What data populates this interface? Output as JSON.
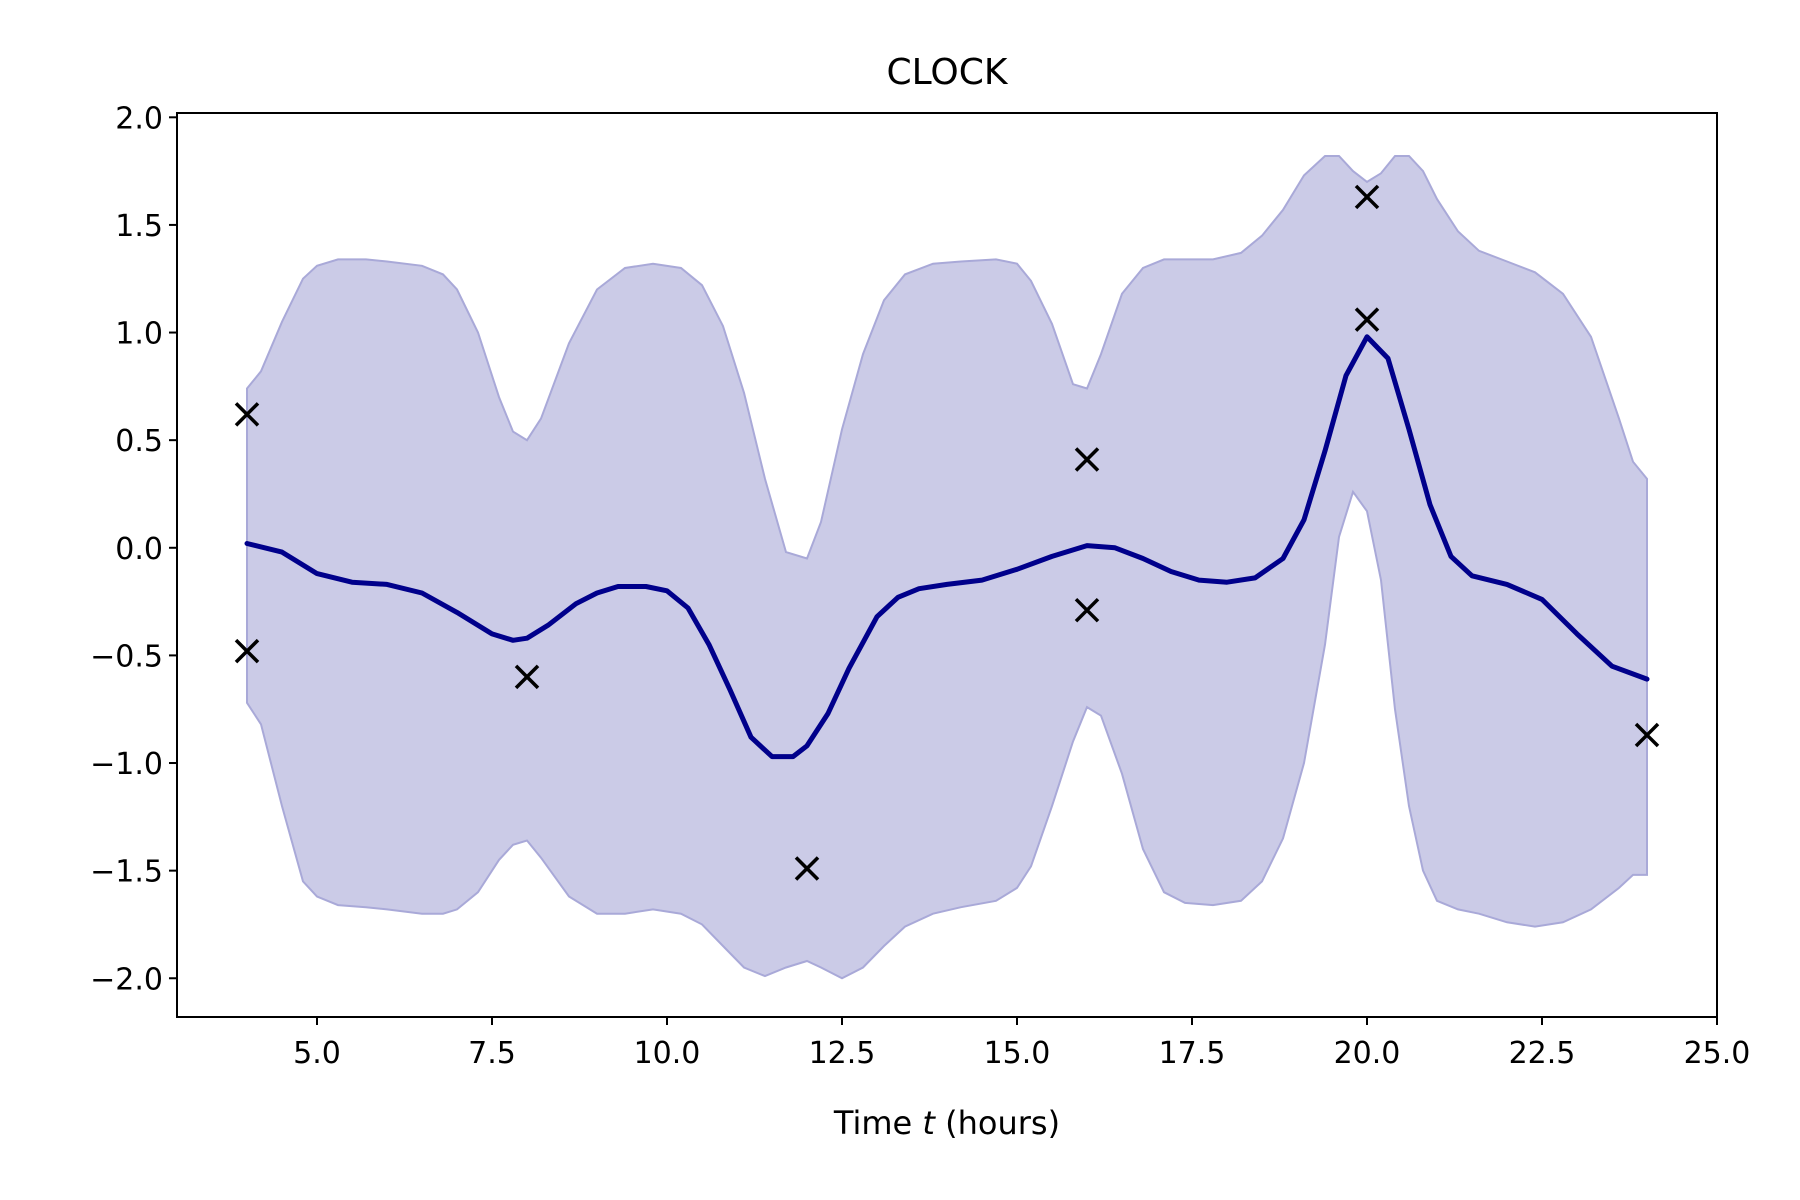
{
  "chart_data": {
    "type": "line",
    "title": "CLOCK",
    "xlabel": {
      "prefix": "Time ",
      "variable": "t",
      "suffix": " (hours)"
    },
    "ylabel": "",
    "xlim": [
      3.0,
      25.0
    ],
    "ylim": [
      -2.18,
      2.02
    ],
    "x_ticks": [
      5.0,
      7.5,
      10.0,
      12.5,
      15.0,
      17.5,
      20.0,
      22.5,
      25.0
    ],
    "x_tick_labels": [
      "5.0",
      "7.5",
      "10.0",
      "12.5",
      "15.0",
      "17.5",
      "20.0",
      "22.5",
      "25.0"
    ],
    "y_ticks": [
      2.0,
      1.5,
      1.0,
      0.5,
      0.0,
      -0.5,
      -1.0,
      -1.5,
      -2.0
    ],
    "y_tick_labels": [
      "2.0",
      "1.5",
      "1.0",
      "0.5",
      "0.0",
      "−0.5",
      "−1.0",
      "−1.5",
      "−2.0"
    ],
    "grid": false,
    "colors": {
      "mean": "#00008b",
      "band_fill": "#cbcbe7",
      "band_edge": "#a9a9d8",
      "markers": "#000000"
    },
    "mean_curve": {
      "x": [
        4.0,
        4.5,
        5.0,
        5.5,
        6.0,
        6.5,
        7.0,
        7.5,
        7.8,
        8.0,
        8.3,
        8.7,
        9.0,
        9.3,
        9.7,
        10.0,
        10.3,
        10.6,
        10.9,
        11.2,
        11.5,
        11.8,
        12.0,
        12.3,
        12.6,
        13.0,
        13.3,
        13.6,
        14.0,
        14.5,
        15.0,
        15.5,
        16.0,
        16.4,
        16.8,
        17.2,
        17.6,
        18.0,
        18.4,
        18.8,
        19.1,
        19.4,
        19.7,
        20.0,
        20.3,
        20.6,
        20.9,
        21.2,
        21.5,
        22.0,
        22.5,
        23.0,
        23.5,
        24.0
      ],
      "y": [
        0.02,
        -0.02,
        -0.12,
        -0.16,
        -0.17,
        -0.21,
        -0.3,
        -0.4,
        -0.43,
        -0.42,
        -0.36,
        -0.26,
        -0.21,
        -0.18,
        -0.18,
        -0.2,
        -0.28,
        -0.45,
        -0.66,
        -0.88,
        -0.97,
        -0.97,
        -0.92,
        -0.77,
        -0.56,
        -0.32,
        -0.23,
        -0.19,
        -0.17,
        -0.15,
        -0.1,
        -0.04,
        0.01,
        0.0,
        -0.05,
        -0.11,
        -0.15,
        -0.16,
        -0.14,
        -0.05,
        0.13,
        0.45,
        0.8,
        0.98,
        0.88,
        0.55,
        0.2,
        -0.04,
        -0.13,
        -0.17,
        -0.24,
        -0.4,
        -0.55,
        -0.61
      ]
    },
    "upper_bound": {
      "x": [
        4.0,
        4.2,
        4.5,
        4.8,
        5.0,
        5.3,
        5.7,
        6.0,
        6.5,
        6.8,
        7.0,
        7.3,
        7.6,
        7.8,
        8.0,
        8.2,
        8.6,
        9.0,
        9.4,
        9.8,
        10.2,
        10.5,
        10.8,
        11.1,
        11.4,
        11.7,
        12.0,
        12.2,
        12.5,
        12.8,
        13.1,
        13.4,
        13.8,
        14.2,
        14.7,
        15.0,
        15.2,
        15.5,
        15.8,
        16.0,
        16.2,
        16.5,
        16.8,
        17.1,
        17.4,
        17.8,
        18.2,
        18.5,
        18.8,
        19.1,
        19.4,
        19.6,
        19.8,
        20.0,
        20.2,
        20.4,
        20.6,
        20.8,
        21.0,
        21.3,
        21.6,
        22.0,
        22.4,
        22.8,
        23.2,
        23.6,
        23.8,
        24.0
      ],
      "y": [
        0.74,
        0.82,
        1.05,
        1.25,
        1.31,
        1.34,
        1.34,
        1.33,
        1.31,
        1.27,
        1.2,
        1.0,
        0.7,
        0.54,
        0.5,
        0.6,
        0.95,
        1.2,
        1.3,
        1.32,
        1.3,
        1.22,
        1.03,
        0.72,
        0.32,
        -0.02,
        -0.05,
        0.12,
        0.55,
        0.9,
        1.15,
        1.27,
        1.32,
        1.33,
        1.34,
        1.32,
        1.24,
        1.04,
        0.76,
        0.74,
        0.9,
        1.18,
        1.3,
        1.34,
        1.34,
        1.34,
        1.37,
        1.45,
        1.57,
        1.73,
        1.82,
        1.82,
        1.75,
        1.7,
        1.74,
        1.82,
        1.82,
        1.75,
        1.62,
        1.47,
        1.38,
        1.33,
        1.28,
        1.18,
        0.98,
        0.6,
        0.4,
        0.32
      ]
    },
    "lower_bound": {
      "x": [
        4.0,
        4.2,
        4.5,
        4.8,
        5.0,
        5.3,
        5.7,
        6.0,
        6.5,
        6.8,
        7.0,
        7.3,
        7.6,
        7.8,
        8.0,
        8.2,
        8.6,
        9.0,
        9.4,
        9.8,
        10.2,
        10.5,
        10.8,
        11.1,
        11.4,
        11.7,
        12.0,
        12.2,
        12.5,
        12.8,
        13.1,
        13.4,
        13.8,
        14.2,
        14.7,
        15.0,
        15.2,
        15.5,
        15.8,
        16.0,
        16.2,
        16.5,
        16.8,
        17.1,
        17.4,
        17.8,
        18.2,
        18.5,
        18.8,
        19.1,
        19.4,
        19.6,
        19.8,
        20.0,
        20.2,
        20.4,
        20.6,
        20.8,
        21.0,
        21.3,
        21.6,
        22.0,
        22.4,
        22.8,
        23.2,
        23.6,
        23.8,
        24.0
      ],
      "y": [
        -0.72,
        -0.82,
        -1.2,
        -1.55,
        -1.62,
        -1.66,
        -1.67,
        -1.68,
        -1.7,
        -1.7,
        -1.68,
        -1.6,
        -1.45,
        -1.38,
        -1.36,
        -1.44,
        -1.62,
        -1.7,
        -1.7,
        -1.68,
        -1.7,
        -1.75,
        -1.85,
        -1.95,
        -1.99,
        -1.95,
        -1.92,
        -1.95,
        -2.0,
        -1.95,
        -1.85,
        -1.76,
        -1.7,
        -1.67,
        -1.64,
        -1.58,
        -1.48,
        -1.2,
        -0.9,
        -0.74,
        -0.78,
        -1.05,
        -1.4,
        -1.6,
        -1.65,
        -1.66,
        -1.64,
        -1.55,
        -1.35,
        -1.0,
        -0.45,
        0.05,
        0.26,
        0.17,
        -0.15,
        -0.75,
        -1.2,
        -1.5,
        -1.64,
        -1.68,
        -1.7,
        -1.74,
        -1.76,
        -1.74,
        -1.68,
        -1.58,
        -1.52,
        -1.52
      ]
    },
    "observations": {
      "x": [
        4.0,
        4.0,
        8.0,
        12.0,
        16.0,
        16.0,
        20.0,
        20.0,
        24.0
      ],
      "y": [
        0.62,
        -0.48,
        -0.6,
        -1.49,
        0.41,
        -0.29,
        1.63,
        1.06,
        -0.87
      ]
    }
  }
}
